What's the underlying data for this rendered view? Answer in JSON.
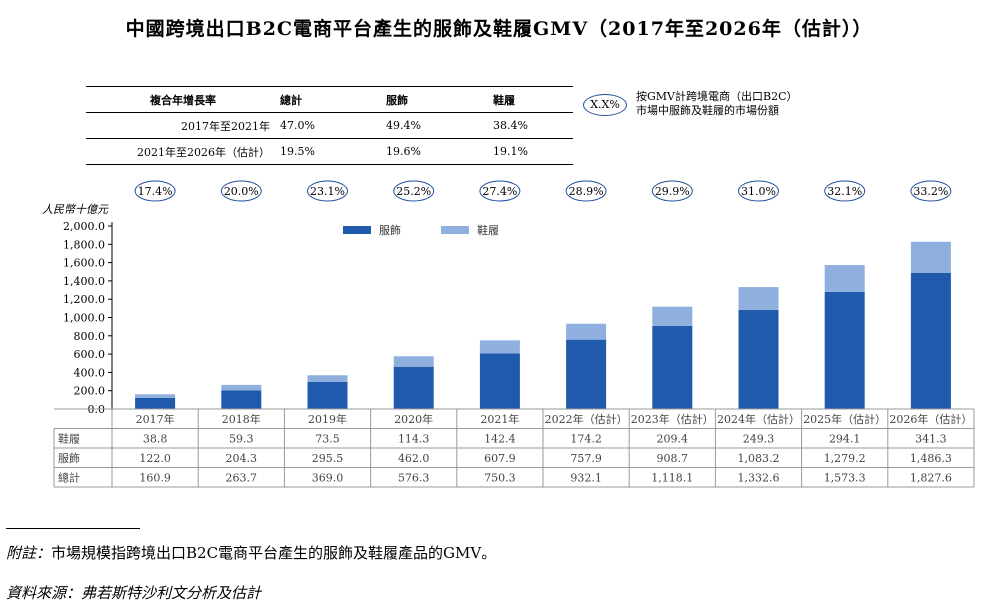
{
  "title": "中國跨境出口B2C電商平台產生的服飾及鞋履GMV（2017年至2026年（估計））",
  "cagr_table": {
    "headers": [
      "複合年增長率",
      "總計",
      "服飾",
      "鞋履"
    ],
    "rows": [
      {
        "period": "2017年至2021年",
        "total": "47.0%",
        "apparel": "49.4%",
        "footwear": "38.4%"
      },
      {
        "period": "2021年至2026年（估計）",
        "total": "19.5%",
        "apparel": "19.6%",
        "footwear": "19.1%"
      }
    ]
  },
  "legend_note": {
    "oval": "X.X%",
    "line1": "按GMV計跨境電商（出口B2C）",
    "line2": "市場中服飾及鞋履的市場份額"
  },
  "colors": {
    "apparel": "#1f5aad",
    "footwear": "#8fb0de",
    "oval": "#1f4f9c"
  },
  "chart_data": {
    "type": "bar",
    "stacked": true,
    "ylabel": "人民幣十億元",
    "ylim": [
      0,
      2000
    ],
    "yticks": [
      "0.0",
      "200.0",
      "400.0",
      "600.0",
      "800.0",
      "1,000.0",
      "1,200.0",
      "1,400.0",
      "1,600.0",
      "1,800.0",
      "2,000.0"
    ],
    "categories": [
      "2017年",
      "2018年",
      "2019年",
      "2020年",
      "2021年",
      "2022年（估計）",
      "2023年（估計）",
      "2024年（估計）",
      "2025年（估計）",
      "2026年（估計）"
    ],
    "series": [
      {
        "name": "服飾",
        "values": [
          122.0,
          204.3,
          295.5,
          462.0,
          607.9,
          757.9,
          908.7,
          1083.2,
          1279.2,
          1486.3
        ]
      },
      {
        "name": "鞋履",
        "values": [
          38.8,
          59.3,
          73.5,
          114.3,
          142.4,
          174.2,
          209.4,
          249.3,
          294.1,
          341.3
        ]
      }
    ],
    "market_share": [
      "17.4%",
      "20.0%",
      "23.1%",
      "25.2%",
      "27.4%",
      "28.9%",
      "29.9%",
      "31.0%",
      "32.1%",
      "33.2%"
    ],
    "table_rows": [
      {
        "label": "鞋履",
        "values": [
          "38.8",
          "59.3",
          "73.5",
          "114.3",
          "142.4",
          "174.2",
          "209.4",
          "249.3",
          "294.1",
          "341.3"
        ]
      },
      {
        "label": "服飾",
        "values": [
          "122.0",
          "204.3",
          "295.5",
          "462.0",
          "607.9",
          "757.9",
          "908.7",
          "1,083.2",
          "1,279.2",
          "1,486.3"
        ]
      },
      {
        "label": "總計",
        "values": [
          "160.9",
          "263.7",
          "369.0",
          "576.3",
          "750.3",
          "932.1",
          "1,118.1",
          "1,332.6",
          "1,573.3",
          "1,827.6"
        ]
      }
    ]
  },
  "footnote": {
    "label": "附註：",
    "text": "市場規模指跨境出口B2C電商平台產生的服飾及鞋履產品的GMV。"
  },
  "source": "資料來源：弗若斯特沙利文分析及估計"
}
